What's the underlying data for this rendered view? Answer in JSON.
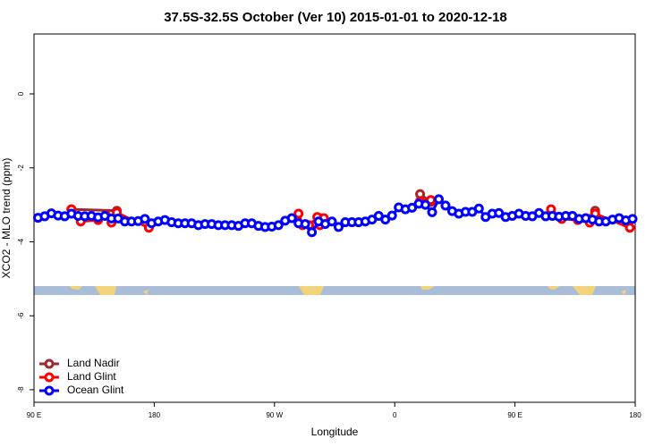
{
  "chart_data": {
    "type": "line",
    "title": "37.5S-32.5S October (Ver 10)   2015-01-01 to 2020-12-18",
    "xlabel": "Longitude",
    "ylabel": "XCO2 - MLO trend (ppm)",
    "xlim": [
      90,
      540
    ],
    "ylim": [
      -8.34,
      1.62
    ],
    "xticks": [
      {
        "value": 90,
        "label": "90 E"
      },
      180,
      {
        "value": 270,
        "label": "90 W"
      },
      {
        "value": 360,
        "label": "0"
      },
      {
        "value": 450,
        "label": "90 E"
      },
      {
        "value": 540,
        "label": "180"
      }
    ],
    "yticks": [
      0,
      -2,
      -4,
      -6,
      -8
    ],
    "legend": "bottomleft",
    "series": [
      {
        "name": "Land Nadir",
        "color": "#a0282d",
        "x": [
          118,
          152,
          null,
          304,
          null,
          379,
          387,
          null,
          506,
          510
        ],
        "values": [
          -3.12,
          -3.16,
          null,
          -3.36,
          null,
          -2.71,
          -2.92,
          null,
          -3.38,
          -3.16
        ]
      },
      {
        "name": "Land Glint",
        "color": "#ff0000",
        "x": [
          118,
          125,
          138,
          144,
          148,
          152,
          176,
          null,
          288,
          291,
          296,
          302,
          304,
          307,
          null,
          379,
          387,
          null,
          477,
          485,
          497,
          506,
          510,
          536
        ],
        "values": [
          -3.12,
          -3.45,
          -3.41,
          -3.29,
          -3.48,
          -3.21,
          -3.62,
          null,
          -3.24,
          -3.55,
          -3.55,
          -3.33,
          -3.55,
          -3.36,
          null,
          -2.9,
          -2.87,
          null,
          -3.12,
          -3.38,
          -3.41,
          -3.48,
          -3.24,
          -3.62
        ]
      },
      {
        "name": "Ocean Glint",
        "color": "#0000ff",
        "x": [
          93,
          98,
          103,
          108,
          113,
          118,
          123,
          128,
          133,
          138,
          143,
          148,
          153,
          158,
          163,
          168,
          173,
          178,
          183,
          188,
          193,
          198,
          203,
          208,
          213,
          218,
          223,
          228,
          233,
          238,
          243,
          248,
          253,
          258,
          263,
          268,
          273,
          278,
          283,
          288,
          293,
          298,
          303,
          308,
          313,
          318,
          323,
          328,
          333,
          338,
          343,
          348,
          353,
          358,
          363,
          368,
          373,
          378,
          383,
          388,
          393,
          398,
          403,
          408,
          413,
          418,
          423,
          428,
          433,
          438,
          443,
          448,
          453,
          458,
          463,
          468,
          473,
          478,
          483,
          488,
          493,
          498,
          503,
          508,
          513,
          518,
          523,
          528,
          533,
          538
        ],
        "values": [
          -3.35,
          -3.31,
          -3.23,
          -3.29,
          -3.31,
          -3.24,
          -3.3,
          -3.31,
          -3.3,
          -3.34,
          -3.3,
          -3.37,
          -3.37,
          -3.45,
          -3.45,
          -3.44,
          -3.38,
          -3.5,
          -3.45,
          -3.41,
          -3.47,
          -3.5,
          -3.5,
          -3.5,
          -3.55,
          -3.52,
          -3.52,
          -3.55,
          -3.55,
          -3.55,
          -3.57,
          -3.5,
          -3.5,
          -3.57,
          -3.6,
          -3.59,
          -3.55,
          -3.43,
          -3.36,
          -3.5,
          -3.52,
          -3.74,
          -3.45,
          -3.52,
          -3.45,
          -3.6,
          -3.47,
          -3.47,
          -3.47,
          -3.45,
          -3.4,
          -3.3,
          -3.4,
          -3.29,
          -3.07,
          -3.12,
          -3.08,
          -2.97,
          -3.0,
          -3.2,
          -2.85,
          -3.02,
          -3.17,
          -3.24,
          -3.19,
          -3.19,
          -3.1,
          -3.33,
          -3.24,
          -3.22,
          -3.33,
          -3.3,
          -3.24,
          -3.3,
          -3.31,
          -3.22,
          -3.31,
          -3.3,
          -3.32,
          -3.3,
          -3.3,
          -3.38,
          -3.36,
          -3.4,
          -3.45,
          -3.45,
          -3.4,
          -3.36,
          -3.42,
          -3.38
        ]
      }
    ]
  }
}
